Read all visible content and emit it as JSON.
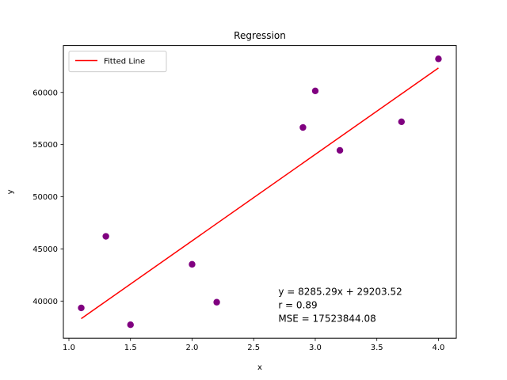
{
  "chart_data": {
    "type": "scatter",
    "title": "Regression",
    "xlabel": "x",
    "ylabel": "y",
    "xlim": [
      0.955,
      4.145
    ],
    "ylim": [
      36440,
      64490
    ],
    "x_ticks": [
      1.0,
      1.5,
      2.0,
      2.5,
      3.0,
      3.5,
      4.0
    ],
    "x_tick_labels": [
      "1.0",
      "1.5",
      "2.0",
      "2.5",
      "3.0",
      "3.5",
      "4.0"
    ],
    "y_ticks": [
      40000,
      45000,
      50000,
      55000,
      60000
    ],
    "y_tick_labels": [
      "40000",
      "45000",
      "50000",
      "55000",
      "60000"
    ],
    "grid": false,
    "series": [
      {
        "kind": "scatter",
        "color": "#800080",
        "points": [
          {
            "x": 1.1,
            "y": 39343
          },
          {
            "x": 1.3,
            "y": 46205
          },
          {
            "x": 1.5,
            "y": 37731
          },
          {
            "x": 2.0,
            "y": 43525
          },
          {
            "x": 2.2,
            "y": 39891
          },
          {
            "x": 2.9,
            "y": 56642
          },
          {
            "x": 3.0,
            "y": 60150
          },
          {
            "x": 3.2,
            "y": 54445
          },
          {
            "x": 3.7,
            "y": 57189
          },
          {
            "x": 4.0,
            "y": 63218
          }
        ]
      },
      {
        "kind": "line",
        "name": "Fitted Line",
        "color": "#ff0000",
        "slope": 8285.29,
        "intercept": 29203.52,
        "x_range": [
          1.1,
          4.0
        ]
      }
    ],
    "legend": {
      "position": "top-left",
      "entries": [
        "Fitted Line"
      ]
    },
    "annotation": {
      "lines": [
        "y = 8285.29x + 29203.52",
        "r = 0.89",
        "MSE = 17523844.08"
      ],
      "x": 2.7,
      "y": 38300
    }
  }
}
